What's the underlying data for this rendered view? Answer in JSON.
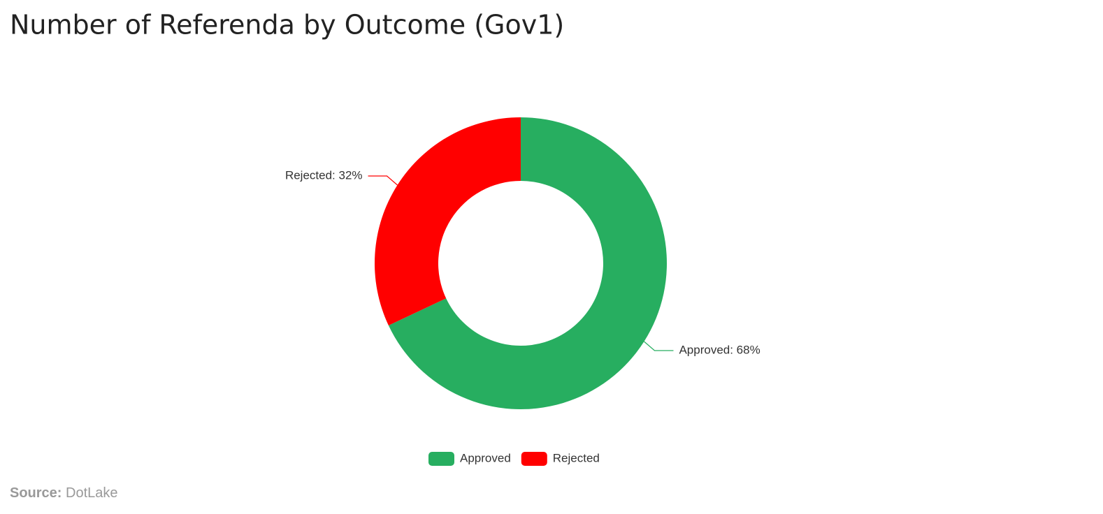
{
  "chart_data": {
    "type": "donut",
    "title": "Number of Referenda by Outcome (Gov1)",
    "categories": [
      "Approved",
      "Rejected"
    ],
    "values": [
      68,
      32
    ],
    "value_labels": [
      "Approved: 68%",
      "Rejected: 32%"
    ],
    "colors": [
      "#27ae60",
      "#ff0000"
    ],
    "source_label": "Source:",
    "source": "DotLake"
  }
}
